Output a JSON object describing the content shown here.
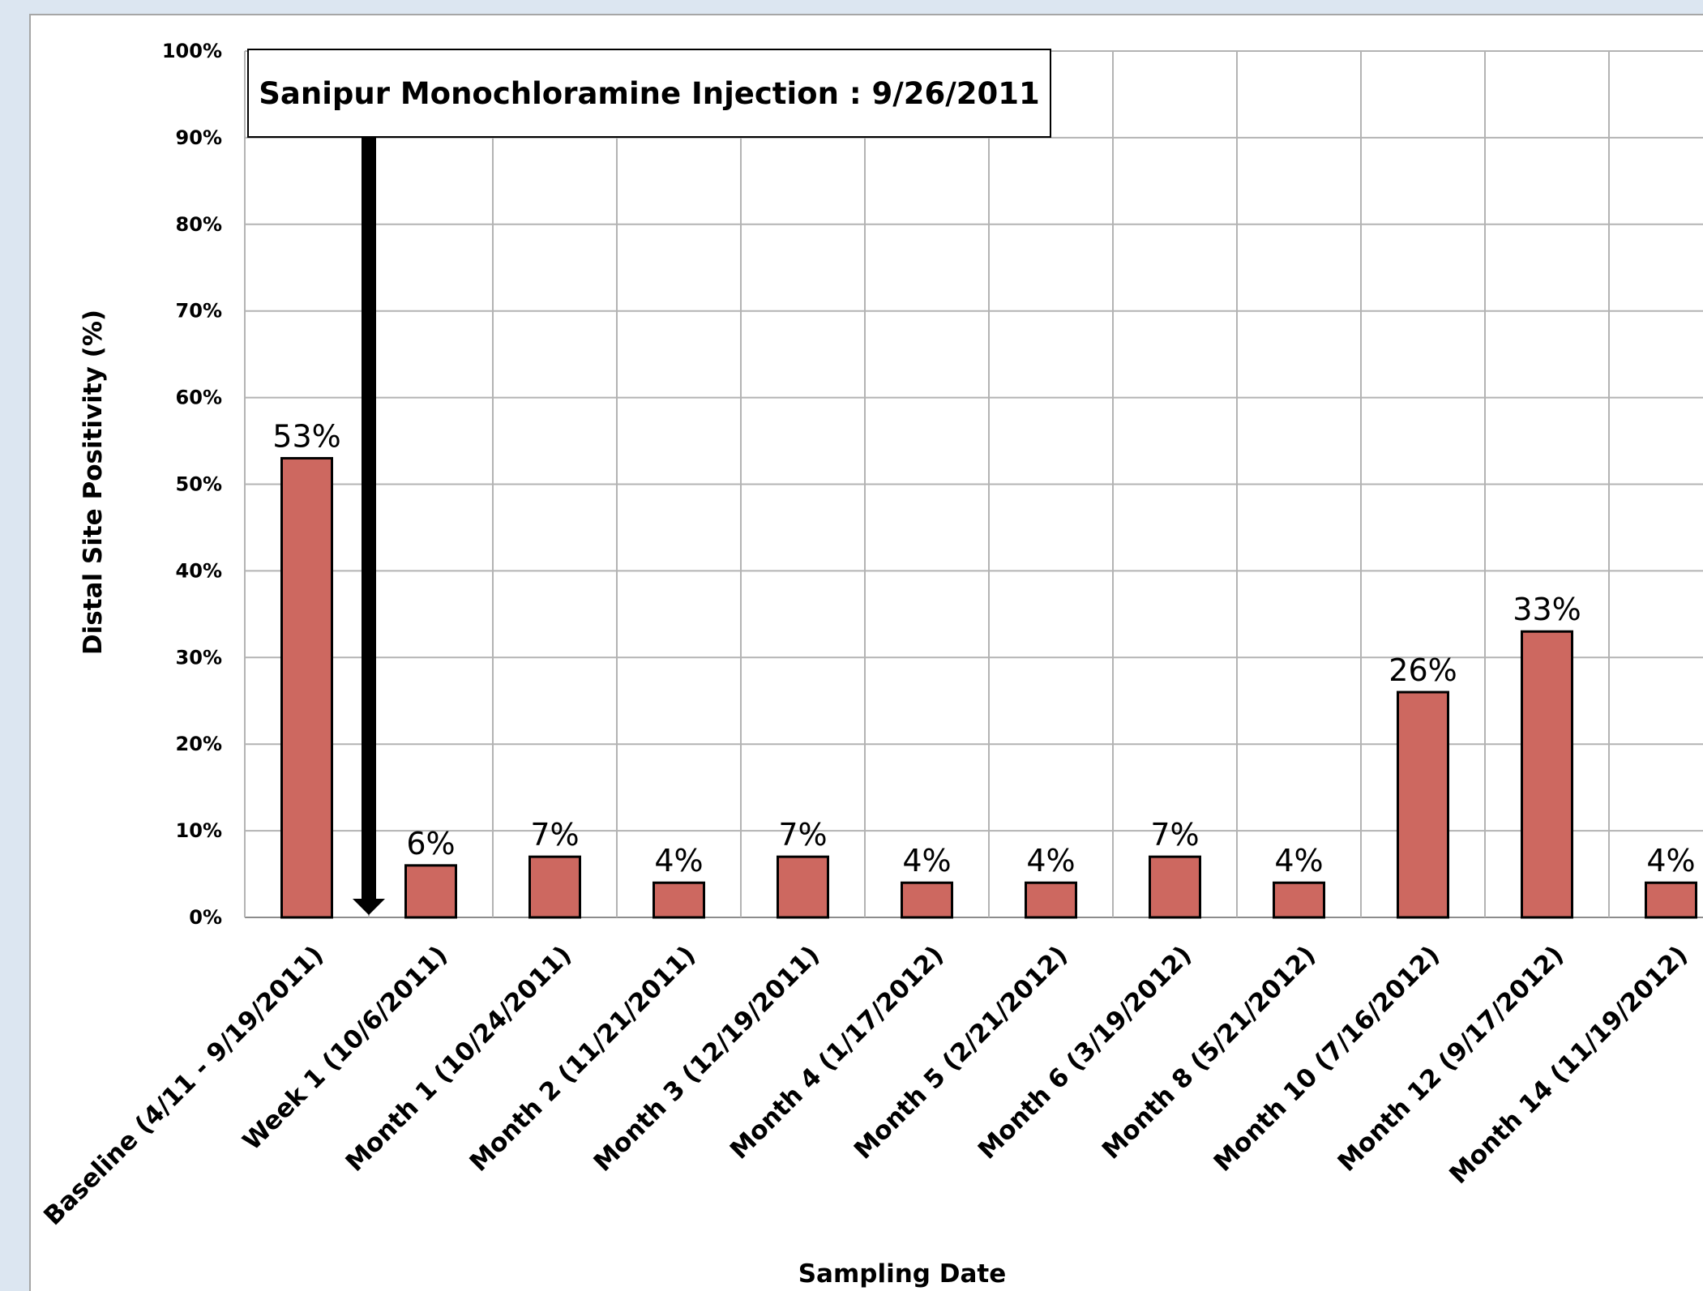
{
  "chart_data": {
    "type": "bar",
    "title": "",
    "xlabel": "Sampling Date",
    "ylabel": "Distal Site Positivity (%)",
    "ylim": [
      0,
      100
    ],
    "yticks": [
      "0%",
      "10%",
      "20%",
      "30%",
      "40%",
      "50%",
      "60%",
      "70%",
      "80%",
      "90%",
      "100%"
    ],
    "grid": true,
    "categories": [
      "Baseline (4/11 - 9/19/2011)",
      "Week 1 (10/6/2011)",
      "Month 1 (10/24/2011)",
      "Month 2 (11/21/2011)",
      "Month 3 (12/19/2011)",
      "Month 4 (1/17/2012)",
      "Month 5 (2/21/2012)",
      "Month 6 (3/19/2012)",
      "Month 8 (5/21/2012)",
      "Month 10 (7/16/2012)",
      "Month 12 (9/17/2012)",
      "Month 14 (11/19/2012)"
    ],
    "values": [
      53,
      6,
      7,
      4,
      7,
      4,
      4,
      7,
      4,
      26,
      33,
      4
    ],
    "data_labels": [
      "53%",
      "6%",
      "7%",
      "4%",
      "7%",
      "4%",
      "4%",
      "7%",
      "4%",
      "26%",
      "33%",
      "4%"
    ],
    "bar_color": "#cd6860",
    "annotation": {
      "text": "Sanipur Monochloramine Injection :  9/26/2011"
    }
  }
}
